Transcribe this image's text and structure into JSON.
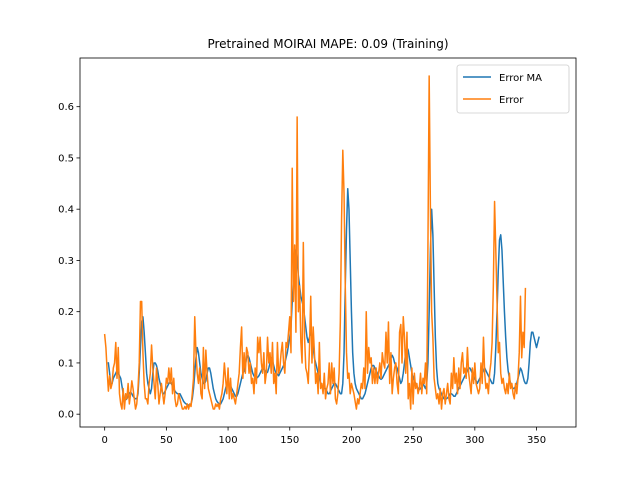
{
  "chart_data": {
    "type": "line",
    "title": "Pretrained MOIRAI MAPE: 0.09 (Training)",
    "xlabel": "",
    "ylabel": "",
    "xlim": [
      -20,
      382
    ],
    "ylim": [
      -0.025,
      0.695
    ],
    "xticks": [
      0,
      50,
      100,
      150,
      200,
      250,
      300,
      350
    ],
    "yticks": [
      0.0,
      0.1,
      0.2,
      0.3,
      0.4,
      0.5,
      0.6
    ],
    "grid": false,
    "legend_position": "top-right",
    "x": {
      "start": 0,
      "step": 1
    },
    "series": [
      {
        "name": "Error MA",
        "color": "#1f77b4",
        "values": [
          null,
          null,
          null,
          0.1,
          0.08,
          0.055,
          0.06,
          0.07,
          0.075,
          0.08,
          0.085,
          0.08,
          0.075,
          0.07,
          0.055,
          0.04,
          0.03,
          0.028,
          0.03,
          0.035,
          0.04,
          0.043,
          0.04,
          0.035,
          0.032,
          0.03,
          0.03,
          0.04,
          0.08,
          0.13,
          0.18,
          0.19,
          0.16,
          0.12,
          0.08,
          0.06,
          0.05,
          0.04,
          0.05,
          0.08,
          0.1,
          0.1,
          0.095,
          0.085,
          0.07,
          0.06,
          0.05,
          0.04,
          0.04,
          0.045,
          0.05,
          0.055,
          0.06,
          0.063,
          0.06,
          0.055,
          0.05,
          0.045,
          0.042,
          0.04,
          0.04,
          0.04,
          0.035,
          0.03,
          0.025,
          0.022,
          0.02,
          0.018,
          0.018,
          0.018,
          0.02,
          0.03,
          0.05,
          0.08,
          0.11,
          0.13,
          0.12,
          0.1,
          0.08,
          0.07,
          0.06,
          0.06,
          0.065,
          0.08,
          0.09,
          0.09,
          0.08,
          0.065,
          0.05,
          0.04,
          0.03,
          0.025,
          0.022,
          0.02,
          0.02,
          0.025,
          0.03,
          0.04,
          0.05,
          0.06,
          0.06,
          0.055,
          0.055,
          0.05,
          0.045,
          0.04,
          0.035,
          0.035,
          0.04,
          0.05,
          0.06,
          0.07,
          0.08,
          0.085,
          0.095,
          0.11,
          0.115,
          0.11,
          0.1,
          0.09,
          0.08,
          0.075,
          0.07,
          0.07,
          0.072,
          0.075,
          0.08,
          0.085,
          0.09,
          0.088,
          0.085,
          0.08,
          0.082,
          0.09,
          0.1,
          0.11,
          0.105,
          0.095,
          0.085,
          0.08,
          0.078,
          0.075,
          0.08,
          0.085,
          0.09,
          0.095,
          0.1,
          0.11,
          0.12,
          0.135,
          0.15,
          0.17,
          0.22,
          0.26,
          0.3,
          0.32,
          0.3,
          0.27,
          0.25,
          0.23,
          0.22,
          0.21,
          0.19,
          0.17,
          0.15,
          0.14,
          0.15,
          0.16,
          0.15,
          0.13,
          0.11,
          0.1,
          0.09,
          0.08,
          0.07,
          0.06,
          0.055,
          0.05,
          0.05,
          0.05,
          0.045,
          0.04,
          0.04,
          0.045,
          0.05,
          0.055,
          0.06,
          0.06,
          0.055,
          0.05,
          0.045,
          0.04,
          0.04,
          0.06,
          0.12,
          0.25,
          0.36,
          0.44,
          0.4,
          0.3,
          0.2,
          0.12,
          0.08,
          0.06,
          0.05,
          0.045,
          0.04,
          0.035,
          0.03,
          0.03,
          0.035,
          0.04,
          0.05,
          0.06,
          0.07,
          0.08,
          0.09,
          0.095,
          0.095,
          0.09,
          0.085,
          0.08,
          0.075,
          0.07,
          0.068,
          0.07,
          0.075,
          0.08,
          0.085,
          0.09,
          0.095,
          0.1,
          0.11,
          0.115,
          0.11,
          0.1,
          0.095,
          0.09,
          0.08,
          0.07,
          0.06,
          0.065,
          0.08,
          0.1,
          0.12,
          0.13,
          0.125,
          0.11,
          0.095,
          0.08,
          0.07,
          0.065,
          0.06,
          0.055,
          0.05,
          0.048,
          0.05,
          0.055,
          0.06,
          0.055,
          0.05,
          0.06,
          0.1,
          0.2,
          0.32,
          0.4,
          0.35,
          0.25,
          0.15,
          0.09,
          0.06,
          0.05,
          0.045,
          0.04,
          0.035,
          0.03,
          0.03,
          0.03,
          0.032,
          0.035,
          0.04,
          0.04,
          0.038,
          0.035,
          0.035,
          0.04,
          0.045,
          0.05,
          0.055,
          0.06,
          0.065,
          0.07,
          0.075,
          0.08,
          0.085,
          0.09,
          0.09,
          0.085,
          0.08,
          0.075,
          0.07,
          0.065,
          0.06,
          0.065,
          0.07,
          0.075,
          0.08,
          0.085,
          0.09,
          0.085,
          0.08,
          0.075,
          0.07,
          0.065,
          0.06,
          0.06,
          0.08,
          0.13,
          0.2,
          0.28,
          0.34,
          0.35,
          0.32,
          0.26,
          0.2,
          0.15,
          0.11,
          0.085,
          0.07,
          0.06,
          0.055,
          0.05,
          0.05,
          0.055,
          0.06,
          0.07,
          0.08,
          0.09,
          0.085,
          0.075,
          0.065,
          0.06,
          0.06,
          0.07,
          0.1,
          0.14,
          0.16,
          0.16,
          0.15,
          0.14,
          0.13,
          0.14,
          0.15
        ]
      },
      {
        "name": "Error",
        "color": "#ff7f0e",
        "values": [
          0.155,
          0.13,
          0.085,
          0.045,
          0.075,
          0.05,
          0.06,
          0.09,
          0.1,
          0.14,
          0.07,
          0.13,
          0.04,
          0.02,
          0.01,
          0.05,
          0.01,
          0.04,
          0.03,
          0.06,
          0.02,
          0.04,
          0.065,
          0.05,
          0.03,
          0.01,
          0.02,
          0.05,
          0.1,
          0.22,
          0.22,
          0.12,
          0.06,
          0.03,
          0.03,
          0.02,
          0.06,
          0.08,
          0.135,
          0.09,
          0.06,
          0.03,
          0.09,
          0.06,
          0.02,
          0.04,
          0.06,
          0.04,
          0.02,
          0.04,
          0.07,
          0.06,
          0.09,
          0.06,
          0.09,
          0.04,
          0.07,
          0.03,
          0.015,
          0.02,
          0.04,
          0.03,
          0.02,
          0.01,
          0.01,
          0.015,
          0.01,
          0.02,
          0.01,
          0.02,
          0.015,
          0.04,
          0.07,
          0.19,
          0.12,
          0.08,
          0.06,
          0.09,
          0.04,
          0.03,
          0.13,
          0.05,
          0.125,
          0.08,
          0.05,
          0.04,
          0.03,
          0.02,
          0.01,
          0.01,
          0.02,
          0.015,
          0.02,
          0.01,
          0.03,
          0.04,
          0.06,
          0.1,
          0.07,
          0.04,
          0.09,
          0.03,
          0.07,
          0.03,
          0.04,
          0.03,
          0.02,
          0.04,
          0.06,
          0.08,
          0.13,
          0.17,
          0.07,
          0.12,
          0.08,
          0.13,
          0.12,
          0.08,
          0.1,
          0.06,
          0.07,
          0.04,
          0.09,
          0.06,
          0.15,
          0.12,
          0.15,
          0.1,
          0.08,
          0.12,
          0.06,
          0.08,
          0.15,
          0.1,
          0.12,
          0.08,
          0.14,
          0.06,
          0.08,
          0.04,
          0.14,
          0.08,
          0.09,
          0.12,
          0.14,
          0.1,
          0.08,
          0.14,
          0.13,
          0.16,
          0.19,
          0.12,
          0.48,
          0.22,
          0.33,
          0.16,
          0.58,
          0.2,
          0.25,
          0.14,
          0.1,
          0.335,
          0.15,
          0.09,
          0.08,
          0.06,
          0.13,
          0.23,
          0.1,
          0.17,
          0.12,
          0.06,
          0.08,
          0.04,
          0.14,
          0.05,
          0.06,
          0.04,
          0.08,
          0.03,
          0.05,
          0.06,
          0.1,
          0.04,
          0.1,
          0.06,
          0.09,
          0.03,
          0.02,
          0.04,
          0.08,
          0.18,
          0.38,
          0.515,
          0.43,
          0.25,
          0.12,
          0.07,
          0.08,
          0.04,
          0.06,
          0.05,
          0.04,
          0.025,
          0.01,
          0.03,
          0.02,
          0.04,
          0.06,
          0.05,
          0.09,
          0.05,
          0.2,
          0.08,
          0.13,
          0.1,
          0.11,
          0.06,
          0.09,
          0.06,
          0.09,
          0.06,
          0.08,
          0.1,
          0.07,
          0.12,
          0.1,
          0.09,
          0.16,
          0.1,
          0.18,
          0.06,
          0.12,
          0.04,
          0.07,
          0.09,
          0.1,
          0.06,
          0.04,
          0.16,
          0.175,
          0.1,
          0.19,
          0.15,
          0.08,
          0.16,
          0.03,
          0.06,
          0.01,
          0.09,
          0.02,
          0.08,
          0.05,
          0.06,
          0.04,
          0.05,
          0.08,
          0.04,
          0.07,
          0.06,
          0.1,
          0.04,
          0.33,
          0.66,
          0.4,
          0.2,
          0.15,
          0.07,
          0.05,
          0.03,
          0.04,
          0.02,
          0.05,
          0.01,
          0.04,
          0.05,
          0.02,
          0.04,
          0.06,
          0.03,
          0.02,
          0.08,
          0.05,
          0.11,
          0.06,
          0.08,
          0.04,
          0.09,
          0.05,
          0.1,
          0.12,
          0.08,
          0.09,
          0.07,
          0.13,
          0.08,
          0.06,
          0.04,
          0.09,
          0.06,
          0.1,
          0.06,
          0.05,
          0.04,
          0.05,
          0.1,
          0.06,
          0.15,
          0.08,
          0.05,
          0.06,
          0.04,
          0.08,
          0.1,
          0.14,
          0.25,
          0.415,
          0.32,
          0.22,
          0.12,
          0.14,
          0.08,
          0.06,
          0.07,
          0.05,
          0.04,
          0.06,
          0.04,
          0.08,
          0.05,
          0.06,
          0.04,
          0.03,
          0.06,
          0.04,
          0.07,
          0.12,
          0.23,
          0.11,
          0.16,
          0.13,
          0.245
        ]
      }
    ]
  }
}
